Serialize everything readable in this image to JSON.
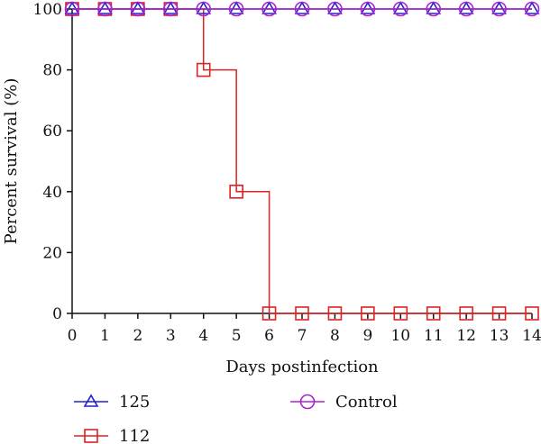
{
  "chart_data": {
    "type": "line",
    "style": "step",
    "title": "",
    "xlabel": "Days postinfection",
    "ylabel": "Percent survival (%)",
    "xlim": [
      0,
      14
    ],
    "ylim": [
      0,
      100
    ],
    "x_ticks": [
      0,
      1,
      2,
      3,
      4,
      5,
      6,
      7,
      8,
      9,
      10,
      11,
      12,
      13,
      14
    ],
    "y_ticks": [
      0,
      20,
      40,
      60,
      80,
      100
    ],
    "grid": false,
    "legend_position": "bottom",
    "series": [
      {
        "name": "125",
        "color": "#2222cc",
        "marker": "triangle",
        "points": [
          [
            0,
            100
          ],
          [
            1,
            100
          ],
          [
            2,
            100
          ],
          [
            3,
            100
          ],
          [
            4,
            100
          ],
          [
            5,
            100
          ],
          [
            6,
            100
          ],
          [
            7,
            100
          ],
          [
            8,
            100
          ],
          [
            9,
            100
          ],
          [
            10,
            100
          ],
          [
            11,
            100
          ],
          [
            12,
            100
          ],
          [
            13,
            100
          ],
          [
            14,
            100
          ]
        ]
      },
      {
        "name": "112",
        "color": "#dd2222",
        "marker": "square",
        "points": [
          [
            0,
            100
          ],
          [
            1,
            100
          ],
          [
            2,
            100
          ],
          [
            3,
            100
          ],
          [
            4,
            100
          ],
          [
            4,
            80
          ],
          [
            5,
            80
          ],
          [
            5,
            40
          ],
          [
            6,
            40
          ],
          [
            6,
            0
          ],
          [
            7,
            0
          ],
          [
            8,
            0
          ],
          [
            9,
            0
          ],
          [
            10,
            0
          ],
          [
            11,
            0
          ],
          [
            12,
            0
          ],
          [
            13,
            0
          ],
          [
            14,
            0
          ]
        ]
      },
      {
        "name": "Control",
        "color": "#aa22cc",
        "marker": "circle",
        "points": [
          [
            0,
            100
          ],
          [
            1,
            100
          ],
          [
            2,
            100
          ],
          [
            3,
            100
          ],
          [
            4,
            100
          ],
          [
            5,
            100
          ],
          [
            6,
            100
          ],
          [
            7,
            100
          ],
          [
            8,
            100
          ],
          [
            9,
            100
          ],
          [
            10,
            100
          ],
          [
            11,
            100
          ],
          [
            12,
            100
          ],
          [
            13,
            100
          ],
          [
            14,
            100
          ]
        ]
      }
    ]
  }
}
